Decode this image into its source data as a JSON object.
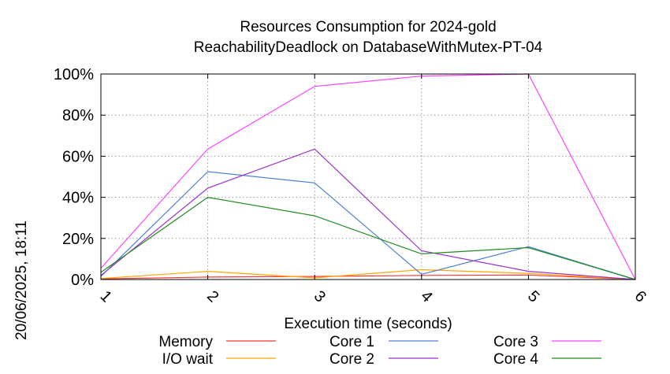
{
  "chart_data": {
    "type": "line",
    "title": [
      "Resources Consumption for 2024-gold",
      "ReachabilityDeadlock on DatabaseWithMutex-PT-04"
    ],
    "xlabel": "Execution time (seconds)",
    "ylabel": "",
    "timestamp": "20/06/2025, 18:11",
    "x": [
      1,
      2,
      3,
      4,
      5,
      6
    ],
    "xlim": [
      1,
      6
    ],
    "ylim": [
      0,
      100
    ],
    "x_ticks": [
      "1",
      "2",
      "3",
      "4",
      "5",
      "6"
    ],
    "y_ticks": [
      "0%",
      "20%",
      "40%",
      "60%",
      "80%",
      "100%"
    ],
    "y_tick_values": [
      0,
      20,
      40,
      60,
      80,
      100
    ],
    "grid": true,
    "legend_position": "bottom",
    "series": [
      {
        "name": "Memory",
        "color": "#ff3333",
        "values": [
          0.3,
          1.2,
          1.5,
          2.0,
          2.2,
          0
        ]
      },
      {
        "name": "I/O wait",
        "color": "#ffa500",
        "values": [
          0.5,
          4.0,
          0.8,
          4.8,
          3.0,
          0
        ]
      },
      {
        "name": "Core 1",
        "color": "#4f7fd6",
        "values": [
          1.5,
          52.5,
          47.0,
          2.5,
          16.0,
          0
        ]
      },
      {
        "name": "Core 2",
        "color": "#9932cc",
        "values": [
          2.0,
          44.5,
          63.5,
          14.0,
          4.0,
          0
        ]
      },
      {
        "name": "Core 3",
        "color": "#ff44ff",
        "values": [
          5.5,
          63.5,
          94.0,
          99.0,
          100.0,
          0
        ]
      },
      {
        "name": "Core 4",
        "color": "#228b22",
        "values": [
          3.5,
          40.0,
          31.0,
          12.5,
          15.5,
          0
        ]
      }
    ]
  }
}
